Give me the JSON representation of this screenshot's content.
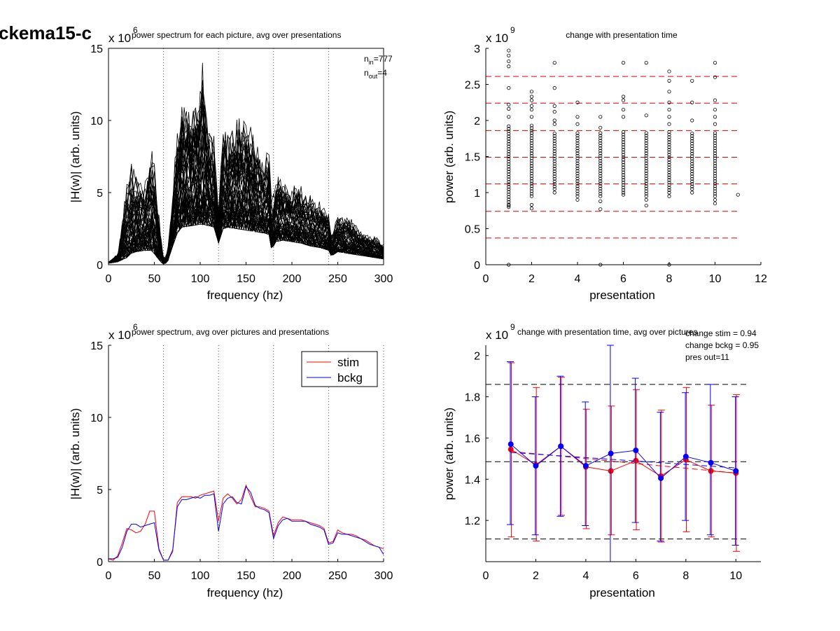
{
  "figure": {
    "page_label": "ckema15-c"
  },
  "colors": {
    "stim": "#ff0000",
    "bckg": "#0000ff",
    "traces": "#000000",
    "red_dash": "#e00000",
    "black_dash": "#000000",
    "vline": "#555555"
  },
  "chart_data": [
    {
      "id": "top_left",
      "type": "line",
      "title": "power spectrum for each picture, avg over presentations",
      "xlabel": "frequency (hz)",
      "ylabel": "|H(w)| (arb. units)",
      "y_exponent": "x 10",
      "y_exponent_power": "6",
      "xlim": [
        0,
        300
      ],
      "ylim": [
        0,
        15
      ],
      "xticks": [
        0,
        50,
        100,
        150,
        200,
        250,
        300
      ],
      "yticks": [
        0,
        5,
        10,
        15
      ],
      "vlines": [
        60,
        120,
        180,
        240,
        300
      ],
      "annotation": {
        "n_in_prefix": "n",
        "n_in_sub": "in",
        "n_in_value": "=777",
        "n_out_prefix": "n",
        "n_out_sub": "out",
        "n_out_value": "=4"
      },
      "trace_count_drawn": 60,
      "envelope": {
        "x": [
          0,
          10,
          20,
          25,
          30,
          40,
          47,
          52,
          57,
          61,
          65,
          70,
          75,
          80,
          90,
          100,
          103,
          110,
          115,
          120,
          125,
          130,
          140,
          150,
          160,
          170,
          175,
          178,
          182,
          190,
          200,
          210,
          220,
          230,
          240,
          243,
          250,
          260,
          270,
          280,
          290,
          300
        ],
        "low": [
          0.1,
          0.2,
          0.5,
          0.8,
          0.9,
          1.0,
          1.0,
          0.6,
          0.2,
          0.0,
          0.3,
          1.3,
          2.2,
          2.6,
          2.7,
          2.8,
          2.8,
          2.7,
          2.6,
          1.5,
          2.5,
          2.6,
          2.5,
          2.4,
          2.3,
          2.2,
          2.1,
          1.0,
          1.6,
          1.7,
          1.6,
          1.5,
          1.3,
          1.2,
          1.0,
          0.6,
          0.9,
          0.8,
          0.7,
          0.6,
          0.5,
          0.4
        ],
        "high": [
          0.2,
          0.8,
          6.0,
          7.0,
          6.5,
          6.0,
          8.9,
          6.0,
          2.0,
          0.1,
          1.5,
          5.0,
          10.0,
          12.0,
          11.0,
          13.0,
          14.7,
          10.0,
          9.0,
          4.0,
          10.0,
          9.0,
          10.3,
          10.5,
          9.0,
          7.0,
          9.0,
          4.0,
          6.5,
          6.0,
          5.5,
          5.5,
          5.0,
          4.5,
          4.0,
          2.0,
          3.5,
          3.5,
          2.8,
          2.2,
          2.0,
          1.5
        ]
      }
    },
    {
      "id": "top_right",
      "type": "scatter",
      "title": "change with presentation time",
      "xlabel": "presentation",
      "ylabel": "power (arb. units)",
      "y_exponent": "x 10",
      "y_exponent_power": "9",
      "xlim": [
        0,
        12
      ],
      "ylim": [
        0,
        3
      ],
      "xticks": [
        0,
        2,
        4,
        6,
        8,
        10,
        12
      ],
      "yticks": [
        0,
        0.5,
        1,
        1.5,
        2,
        2.5,
        3
      ],
      "hlines": [
        0.37,
        0.74,
        1.12,
        1.49,
        1.86,
        2.24,
        2.61
      ],
      "columns": [
        {
          "x": 1,
          "lo": 0.8,
          "hi": 1.95,
          "outliers": [
            0.0,
            0.82,
            2.05,
            2.16,
            2.22,
            2.45,
            2.75,
            2.82,
            2.9,
            2.97
          ]
        },
        {
          "x": 2,
          "lo": 0.95,
          "hi": 1.95,
          "outliers": [
            0.78,
            0.83,
            2.05,
            2.15,
            2.2,
            2.28,
            2.33,
            2.4
          ]
        },
        {
          "x": 3,
          "lo": 1.05,
          "hi": 1.85,
          "outliers": [
            1.0,
            1.95,
            2.0,
            2.12,
            2.2,
            2.45,
            2.8
          ]
        },
        {
          "x": 4,
          "lo": 0.95,
          "hi": 1.85,
          "outliers": [
            0.9,
            1.95,
            2.05,
            2.25
          ]
        },
        {
          "x": 5,
          "lo": 0.95,
          "hi": 1.85,
          "outliers": [
            0.0,
            0.77,
            0.88,
            1.9,
            2.05
          ]
        },
        {
          "x": 6,
          "lo": 1.0,
          "hi": 1.85,
          "outliers": [
            0.97,
            2.05,
            2.15,
            2.28,
            2.33,
            2.8
          ]
        },
        {
          "x": 7,
          "lo": 0.95,
          "hi": 1.85,
          "outliers": [
            0.82,
            0.9,
            2.07,
            2.8
          ]
        },
        {
          "x": 8,
          "lo": 1.0,
          "hi": 1.85,
          "outliers": [
            0.0,
            0.95,
            1.95,
            2.05,
            2.15,
            2.25,
            2.4,
            2.55,
            2.68
          ]
        },
        {
          "x": 9,
          "lo": 1.05,
          "hi": 1.85,
          "outliers": [
            1.0,
            2.0,
            2.25,
            2.55
          ]
        },
        {
          "x": 10,
          "lo": 0.95,
          "hi": 1.85,
          "outliers": [
            0.85,
            0.9,
            1.95,
            2.05,
            2.15,
            2.28,
            2.6,
            2.8
          ]
        },
        {
          "x": 11,
          "lo": 0.97,
          "hi": 0.97,
          "outliers": []
        }
      ]
    },
    {
      "id": "bottom_left",
      "type": "line",
      "title": "power spectrum, avg over pictures and presentations",
      "xlabel": "frequency (hz)",
      "ylabel": "|H(w)| (arb. units)",
      "y_exponent": "x 10",
      "y_exponent_power": "6",
      "xlim": [
        0,
        300
      ],
      "ylim": [
        0,
        15
      ],
      "xticks": [
        0,
        50,
        100,
        150,
        200,
        250,
        300
      ],
      "yticks": [
        0,
        5,
        10,
        15
      ],
      "vlines": [
        60,
        120,
        180,
        240,
        300
      ],
      "legend": {
        "position": "top-right",
        "entries": [
          "stim",
          "bckg"
        ]
      },
      "x": [
        0,
        5,
        10,
        15,
        20,
        25,
        30,
        35,
        40,
        45,
        50,
        55,
        60,
        65,
        70,
        75,
        80,
        85,
        90,
        95,
        100,
        105,
        110,
        115,
        120,
        125,
        130,
        135,
        140,
        145,
        150,
        155,
        160,
        165,
        170,
        175,
        180,
        185,
        190,
        195,
        200,
        205,
        210,
        215,
        220,
        225,
        230,
        235,
        240,
        245,
        250,
        255,
        260,
        265,
        270,
        275,
        280,
        285,
        290,
        295,
        300
      ],
      "series": [
        {
          "name": "stim",
          "values": [
            0.2,
            0.1,
            0.4,
            1.3,
            2.3,
            2.2,
            2.0,
            2.1,
            2.6,
            3.5,
            3.5,
            0.9,
            0.1,
            0.1,
            0.7,
            4.1,
            4.5,
            4.5,
            4.5,
            4.4,
            4.6,
            4.7,
            4.8,
            4.9,
            2.8,
            4.4,
            4.7,
            4.4,
            4.0,
            4.3,
            5.3,
            4.5,
            3.8,
            3.8,
            3.7,
            3.5,
            1.8,
            2.7,
            3.1,
            3.0,
            2.9,
            2.9,
            2.9,
            2.8,
            2.7,
            2.6,
            2.5,
            2.3,
            1.3,
            1.4,
            2.2,
            2.0,
            1.9,
            1.9,
            1.8,
            1.6,
            1.5,
            1.3,
            1.1,
            1.0,
            0.9
          ]
        },
        {
          "name": "bckg",
          "values": [
            0.2,
            0.2,
            0.3,
            1.0,
            2.1,
            2.6,
            2.6,
            2.4,
            2.5,
            2.6,
            2.7,
            0.8,
            0.1,
            0.1,
            0.8,
            3.8,
            4.3,
            4.3,
            4.4,
            4.5,
            4.4,
            4.6,
            4.6,
            4.7,
            2.1,
            4.0,
            4.4,
            4.5,
            4.1,
            4.0,
            5.2,
            4.8,
            3.9,
            3.7,
            3.6,
            3.4,
            1.6,
            2.5,
            2.9,
            3.0,
            2.8,
            2.8,
            2.8,
            2.8,
            2.6,
            2.5,
            2.4,
            2.2,
            1.2,
            1.3,
            2.0,
            1.9,
            1.9,
            1.8,
            1.7,
            1.6,
            1.4,
            1.2,
            1.1,
            1.0,
            0.5
          ]
        }
      ]
    },
    {
      "id": "bottom_right",
      "type": "line",
      "title": "change with presentation time, avg over pictures",
      "xlabel": "presentation",
      "ylabel": "power (arb. units)",
      "y_exponent": "x 10",
      "y_exponent_power": "9",
      "xlim": [
        0,
        11
      ],
      "ylim": [
        1.0,
        2.05
      ],
      "xticks": [
        0,
        2,
        4,
        6,
        8,
        10
      ],
      "yticks": [
        1.2,
        1.4,
        1.6,
        1.8,
        2
      ],
      "hlines": [
        1.11,
        1.485,
        1.86
      ],
      "annotations": [
        "change stim = 0.94",
        "change bckg = 0.95",
        "pres out=11"
      ],
      "x": [
        1,
        2,
        3,
        4,
        5,
        6,
        7,
        8,
        9,
        10
      ],
      "series": [
        {
          "name": "stim",
          "values": [
            1.545,
            1.47,
            1.56,
            1.46,
            1.44,
            1.49,
            1.415,
            1.495,
            1.44,
            1.43
          ],
          "err_lo": [
            1.12,
            1.1,
            1.225,
            1.16,
            1.13,
            1.155,
            1.095,
            1.145,
            1.12,
            1.05
          ],
          "err_hi": [
            1.965,
            1.845,
            1.895,
            1.74,
            1.755,
            1.835,
            1.735,
            1.845,
            1.76,
            1.81
          ],
          "fit": [
            1.535,
            1.43
          ]
        },
        {
          "name": "bckg",
          "values": [
            1.57,
            1.465,
            1.56,
            1.465,
            1.525,
            1.54,
            1.405,
            1.51,
            1.48,
            1.44
          ],
          "err_lo": [
            1.18,
            1.13,
            1.22,
            1.175,
            1.0,
            1.19,
            1.1,
            1.2,
            1.13,
            1.08
          ],
          "err_hi": [
            1.97,
            1.8,
            1.9,
            1.775,
            2.05,
            1.89,
            1.725,
            1.82,
            1.86,
            1.8
          ],
          "fit": [
            1.53,
            1.455
          ]
        }
      ]
    }
  ]
}
